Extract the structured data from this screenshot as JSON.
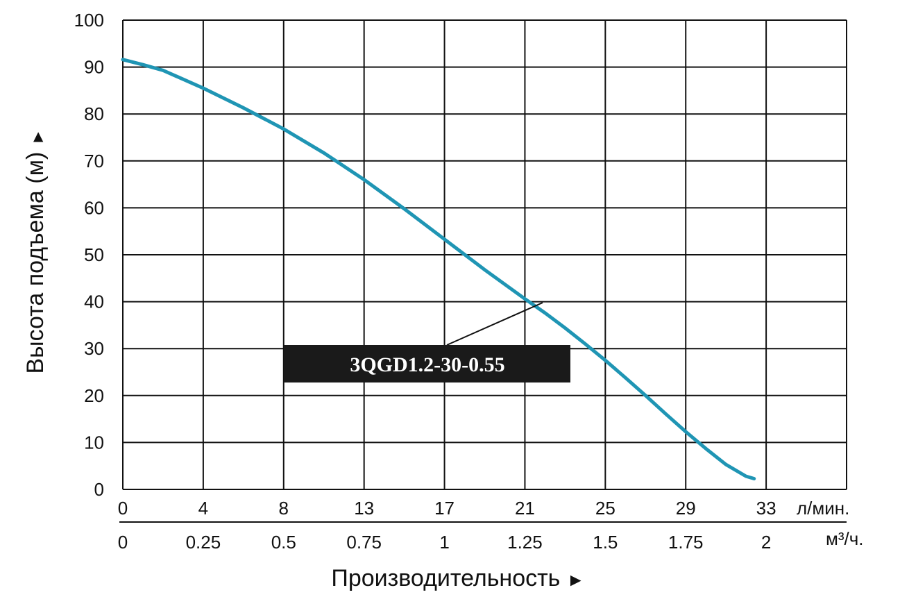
{
  "chart_data": {
    "type": "line",
    "title": "",
    "ylabel": "Высота подъема (м)",
    "ylabel_arrow": "►",
    "xlabel": "Производительность",
    "xlabel_arrow": "►",
    "ylim": [
      0,
      100
    ],
    "yticks": [
      0,
      10,
      20,
      30,
      40,
      50,
      60,
      70,
      80,
      90,
      100
    ],
    "xlim": [
      0,
      36
    ],
    "x_unit": "л/мин.",
    "xticks": [
      "0",
      "4",
      "8",
      "13",
      "17",
      "21",
      "25",
      "29",
      "33"
    ],
    "secondary_x_unit": "м³/ч.",
    "secondary_xticks": [
      "0",
      "0.25",
      "0.5",
      "0.75",
      "1",
      "1.25",
      "1.5",
      "1.75",
      "2"
    ],
    "grid": true,
    "series": [
      {
        "name": "3QGD1.2-30-0.55",
        "color": "#1f95b4",
        "x": [
          0,
          1,
          2,
          4,
          6,
          8,
          10,
          12,
          14,
          16,
          18,
          20,
          21,
          22,
          23,
          24,
          25,
          26,
          27,
          28,
          29,
          30,
          31,
          31.4
        ],
        "y": [
          91.6,
          90.5,
          89.3,
          85.5,
          81.3,
          76.8,
          71.7,
          66.0,
          59.8,
          53.3,
          46.8,
          40.6,
          37.6,
          34.4,
          31.0,
          27.5,
          23.8,
          20.0,
          16.1,
          12.3,
          8.7,
          5.3,
          2.8,
          2.3
        ]
      }
    ],
    "annotation": "3QGD1.2-30-0.55"
  }
}
